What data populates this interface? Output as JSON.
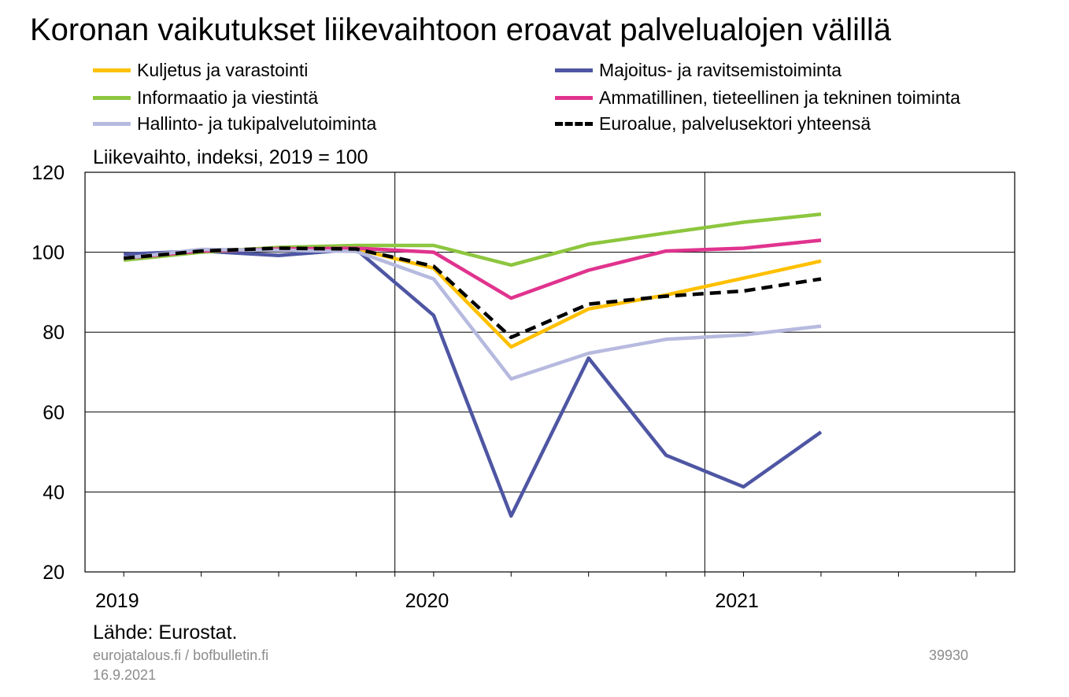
{
  "title": "Koronan vaikutukset liikevaihtoon eroavat palvelualojen välillä",
  "legend_items": [
    {
      "label": "Kuljetus ja varastointi",
      "color": "#FFC000",
      "dash": false
    },
    {
      "label": "Majoitus- ja ravitsemistoiminta",
      "color": "#4E56A3",
      "dash": false
    },
    {
      "label": "Informaatio ja viestintä",
      "color": "#8DC63F",
      "dash": false
    },
    {
      "label": "Ammatillinen, tieteellinen ja tekninen toiminta",
      "color": "#E0338E",
      "dash": false
    },
    {
      "label": "Hallinto- ja tukipalvelutoiminta",
      "color": "#B7BADF",
      "dash": false
    },
    {
      "label": "Euroalue, palvelusektori yhteensä",
      "color": "#000000",
      "dash": true
    }
  ],
  "y_axis_label": "Liikevaihto, indeksi, 2019 = 100",
  "source": "Lähde: Eurostat.",
  "footer": {
    "site": "eurojatalous.fi  / bofbulletin.fi",
    "date": "16.9.2021",
    "code": "39930"
  },
  "chart_data": {
    "type": "line",
    "x_labels": [
      "2019",
      "2020",
      "2021"
    ],
    "x": [
      "2019Q1",
      "2019Q2",
      "2019Q3",
      "2019Q4",
      "2020Q1",
      "2020Q2",
      "2020Q3",
      "2020Q4",
      "2021Q1",
      "2021Q2"
    ],
    "ylim": [
      20,
      120
    ],
    "yticks": [
      20,
      40,
      60,
      80,
      100,
      120
    ],
    "grid": true,
    "series": [
      {
        "name": "Kuljetus ja varastointi",
        "color": "#FFC000",
        "dash": false,
        "values": [
          98.3,
          100.3,
          101.0,
          100.8,
          96.0,
          76.3,
          85.8,
          89.3,
          93.5,
          97.8
        ]
      },
      {
        "name": "Majoitus- ja ravitsemistoiminta",
        "color": "#4E56A3",
        "dash": false,
        "values": [
          99.5,
          100.3,
          99.2,
          100.7,
          84.2,
          34.0,
          73.5,
          49.2,
          41.3,
          55.0
        ]
      },
      {
        "name": "Informaatio ja viestintä",
        "color": "#8DC63F",
        "dash": false,
        "values": [
          98.0,
          100.0,
          101.2,
          101.7,
          101.7,
          96.8,
          102.0,
          104.8,
          107.5,
          109.5
        ]
      },
      {
        "name": "Ammatillinen, tieteellinen ja tekninen toiminta",
        "color": "#E0338E",
        "dash": false,
        "values": [
          98.5,
          100.3,
          100.8,
          101.0,
          100.0,
          88.5,
          95.5,
          100.3,
          101.0,
          103.0
        ]
      },
      {
        "name": "Hallinto- ja tukipalvelutoiminta",
        "color": "#B7BADF",
        "dash": false,
        "values": [
          98.5,
          100.7,
          100.5,
          100.2,
          93.3,
          68.3,
          74.7,
          78.2,
          79.3,
          81.5
        ]
      },
      {
        "name": "Euroalue, palvelusektori yhteensä",
        "color": "#000000",
        "dash": true,
        "values": [
          98.5,
          100.3,
          101.0,
          100.8,
          96.5,
          78.7,
          87.0,
          89.0,
          90.3,
          93.3
        ]
      }
    ]
  }
}
